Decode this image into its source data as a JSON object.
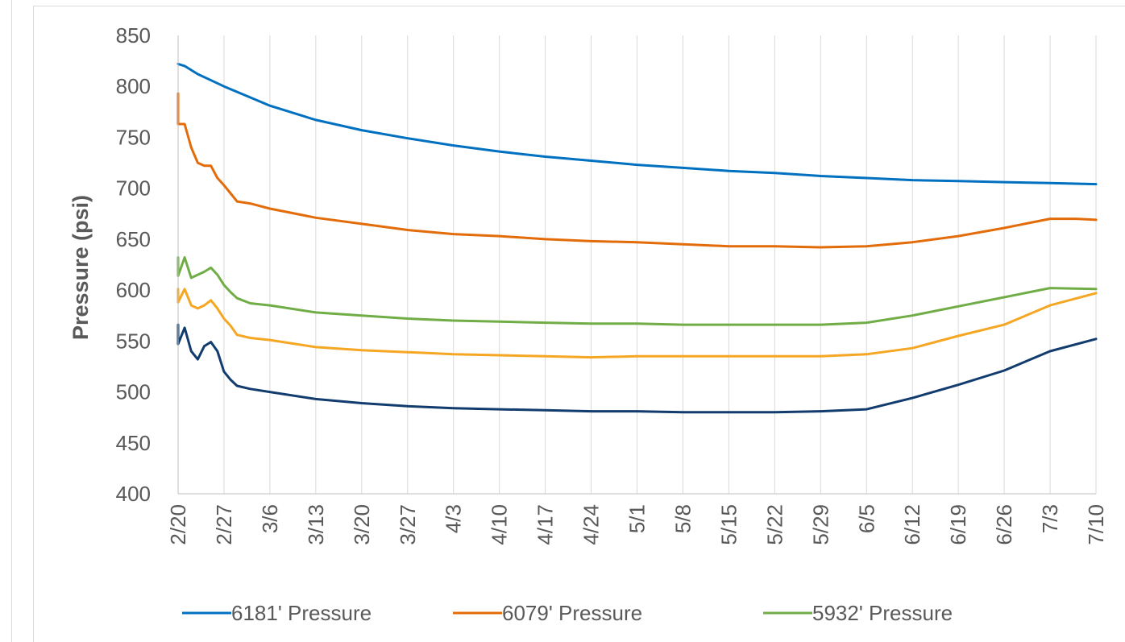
{
  "chart_data": {
    "type": "line",
    "title": "",
    "xlabel": "",
    "ylabel": "Pressure (psi)",
    "ylim": [
      400,
      850
    ],
    "yticks": [
      400,
      450,
      500,
      550,
      600,
      650,
      700,
      750,
      800,
      850
    ],
    "xlim": [
      "2/20",
      "7/10"
    ],
    "xticks": [
      "2/20",
      "2/27",
      "3/6",
      "3/13",
      "3/20",
      "3/27",
      "4/3",
      "4/10",
      "4/17",
      "4/24",
      "5/1",
      "5/8",
      "5/15",
      "5/22",
      "5/29",
      "6/5",
      "6/12",
      "6/19",
      "6/26",
      "7/3",
      "7/10"
    ],
    "grid": "vertical",
    "legend_position": "bottom",
    "series": [
      {
        "name": "6181' Pressure",
        "color": "#0070C0",
        "in_legend": true,
        "points": [
          [
            "2/20",
            822
          ],
          [
            "2/21",
            820
          ],
          [
            "2/23",
            812
          ],
          [
            "2/27",
            800
          ],
          [
            "3/6",
            781
          ],
          [
            "3/13",
            767
          ],
          [
            "3/20",
            757
          ],
          [
            "3/27",
            749
          ],
          [
            "4/3",
            742
          ],
          [
            "4/10",
            736
          ],
          [
            "4/17",
            731
          ],
          [
            "4/24",
            727
          ],
          [
            "5/1",
            723
          ],
          [
            "5/8",
            720
          ],
          [
            "5/15",
            717
          ],
          [
            "5/22",
            715
          ],
          [
            "5/29",
            712
          ],
          [
            "6/5",
            710
          ],
          [
            "6/12",
            708
          ],
          [
            "6/19",
            707
          ],
          [
            "6/26",
            706
          ],
          [
            "7/3",
            705
          ],
          [
            "7/10",
            704
          ]
        ]
      },
      {
        "name": "6079' Pressure",
        "color": "#E36C0A",
        "in_legend": true,
        "points": [
          [
            "2/20",
            793
          ],
          [
            "2/20",
            763
          ],
          [
            "2/21",
            763
          ],
          [
            "2/22",
            740
          ],
          [
            "2/23",
            725
          ],
          [
            "2/24",
            722
          ],
          [
            "2/25",
            722
          ],
          [
            "2/26",
            710
          ],
          [
            "2/27",
            703
          ],
          [
            "2/28",
            695
          ],
          [
            "3/1",
            687
          ],
          [
            "3/3",
            685
          ],
          [
            "3/6",
            680
          ],
          [
            "3/13",
            671
          ],
          [
            "3/20",
            665
          ],
          [
            "3/27",
            659
          ],
          [
            "4/3",
            655
          ],
          [
            "4/10",
            653
          ],
          [
            "4/17",
            650
          ],
          [
            "4/24",
            648
          ],
          [
            "5/1",
            647
          ],
          [
            "5/8",
            645
          ],
          [
            "5/15",
            643
          ],
          [
            "5/22",
            643
          ],
          [
            "5/29",
            642
          ],
          [
            "6/5",
            643
          ],
          [
            "6/12",
            647
          ],
          [
            "6/19",
            653
          ],
          [
            "6/26",
            661
          ],
          [
            "7/3",
            670
          ],
          [
            "7/7",
            670
          ],
          [
            "7/10",
            669
          ]
        ]
      },
      {
        "name": "5932' Pressure",
        "color": "#70AD47",
        "in_legend": true,
        "points": [
          [
            "2/20",
            632
          ],
          [
            "2/20",
            614
          ],
          [
            "2/21",
            632
          ],
          [
            "2/22",
            612
          ],
          [
            "2/23",
            615
          ],
          [
            "2/24",
            618
          ],
          [
            "2/25",
            622
          ],
          [
            "2/26",
            615
          ],
          [
            "2/27",
            605
          ],
          [
            "2/28",
            598
          ],
          [
            "3/1",
            592
          ],
          [
            "3/3",
            587
          ],
          [
            "3/6",
            585
          ],
          [
            "3/13",
            578
          ],
          [
            "3/20",
            575
          ],
          [
            "3/27",
            572
          ],
          [
            "4/3",
            570
          ],
          [
            "4/10",
            569
          ],
          [
            "4/17",
            568
          ],
          [
            "4/24",
            567
          ],
          [
            "5/1",
            567
          ],
          [
            "5/8",
            566
          ],
          [
            "5/15",
            566
          ],
          [
            "5/22",
            566
          ],
          [
            "5/29",
            566
          ],
          [
            "6/5",
            568
          ],
          [
            "6/12",
            575
          ],
          [
            "6/19",
            584
          ],
          [
            "6/26",
            593
          ],
          [
            "7/3",
            602
          ],
          [
            "7/10",
            601
          ]
        ]
      },
      {
        "name": "",
        "color": "#F5A623",
        "in_legend": false,
        "points": [
          [
            "2/20",
            601
          ],
          [
            "2/20",
            588
          ],
          [
            "2/21",
            601
          ],
          [
            "2/22",
            585
          ],
          [
            "2/23",
            582
          ],
          [
            "2/24",
            585
          ],
          [
            "2/25",
            590
          ],
          [
            "2/26",
            582
          ],
          [
            "2/27",
            572
          ],
          [
            "2/28",
            565
          ],
          [
            "3/1",
            556
          ],
          [
            "3/3",
            553
          ],
          [
            "3/6",
            551
          ],
          [
            "3/13",
            544
          ],
          [
            "3/20",
            541
          ],
          [
            "3/27",
            539
          ],
          [
            "4/3",
            537
          ],
          [
            "4/10",
            536
          ],
          [
            "4/17",
            535
          ],
          [
            "4/24",
            534
          ],
          [
            "5/1",
            535
          ],
          [
            "5/8",
            535
          ],
          [
            "5/15",
            535
          ],
          [
            "5/22",
            535
          ],
          [
            "5/29",
            535
          ],
          [
            "6/5",
            537
          ],
          [
            "6/12",
            543
          ],
          [
            "6/19",
            555
          ],
          [
            "6/26",
            566
          ],
          [
            "7/3",
            585
          ],
          [
            "7/10",
            597
          ]
        ]
      },
      {
        "name": "",
        "color": "#123B6E",
        "in_legend": false,
        "points": [
          [
            "2/20",
            566
          ],
          [
            "2/20",
            547
          ],
          [
            "2/21",
            563
          ],
          [
            "2/22",
            540
          ],
          [
            "2/23",
            532
          ],
          [
            "2/24",
            545
          ],
          [
            "2/25",
            549
          ],
          [
            "2/26",
            540
          ],
          [
            "2/27",
            520
          ],
          [
            "2/28",
            512
          ],
          [
            "3/1",
            506
          ],
          [
            "3/3",
            503
          ],
          [
            "3/6",
            500
          ],
          [
            "3/13",
            493
          ],
          [
            "3/20",
            489
          ],
          [
            "3/27",
            486
          ],
          [
            "4/3",
            484
          ],
          [
            "4/10",
            483
          ],
          [
            "4/17",
            482
          ],
          [
            "4/24",
            481
          ],
          [
            "5/1",
            481
          ],
          [
            "5/8",
            480
          ],
          [
            "5/15",
            480
          ],
          [
            "5/22",
            480
          ],
          [
            "5/29",
            481
          ],
          [
            "6/5",
            483
          ],
          [
            "6/12",
            494
          ],
          [
            "6/19",
            507
          ],
          [
            "6/26",
            521
          ],
          [
            "7/3",
            540
          ],
          [
            "7/10",
            552
          ]
        ]
      }
    ]
  }
}
